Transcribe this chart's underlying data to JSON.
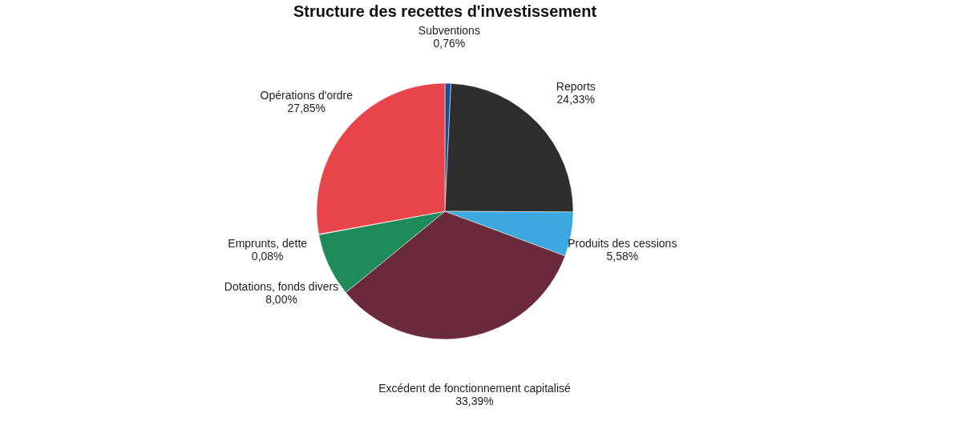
{
  "chart_data": {
    "type": "pie",
    "title": "Structure des recettes d'investissement",
    "categories": [
      "Subventions",
      "Reports",
      "Produits des cessions",
      "Excédent de fonctionnement capitalisé",
      "Dotations, fonds divers",
      "Emprunts, dette",
      "Opérations d'ordre"
    ],
    "values": [
      0.76,
      24.33,
      5.58,
      33.39,
      8.0,
      0.08,
      27.85
    ],
    "value_labels": [
      "0,76%",
      "24,33%",
      "5,58%",
      "33,39%",
      "8,00%",
      "0,08%",
      "27,85%"
    ],
    "colors": [
      "#1f4e96",
      "#2e2e2e",
      "#3ba8e0",
      "#6b2a3c",
      "#1f8a5c",
      "#8a8a8a",
      "#e8454a"
    ],
    "legend": false
  }
}
